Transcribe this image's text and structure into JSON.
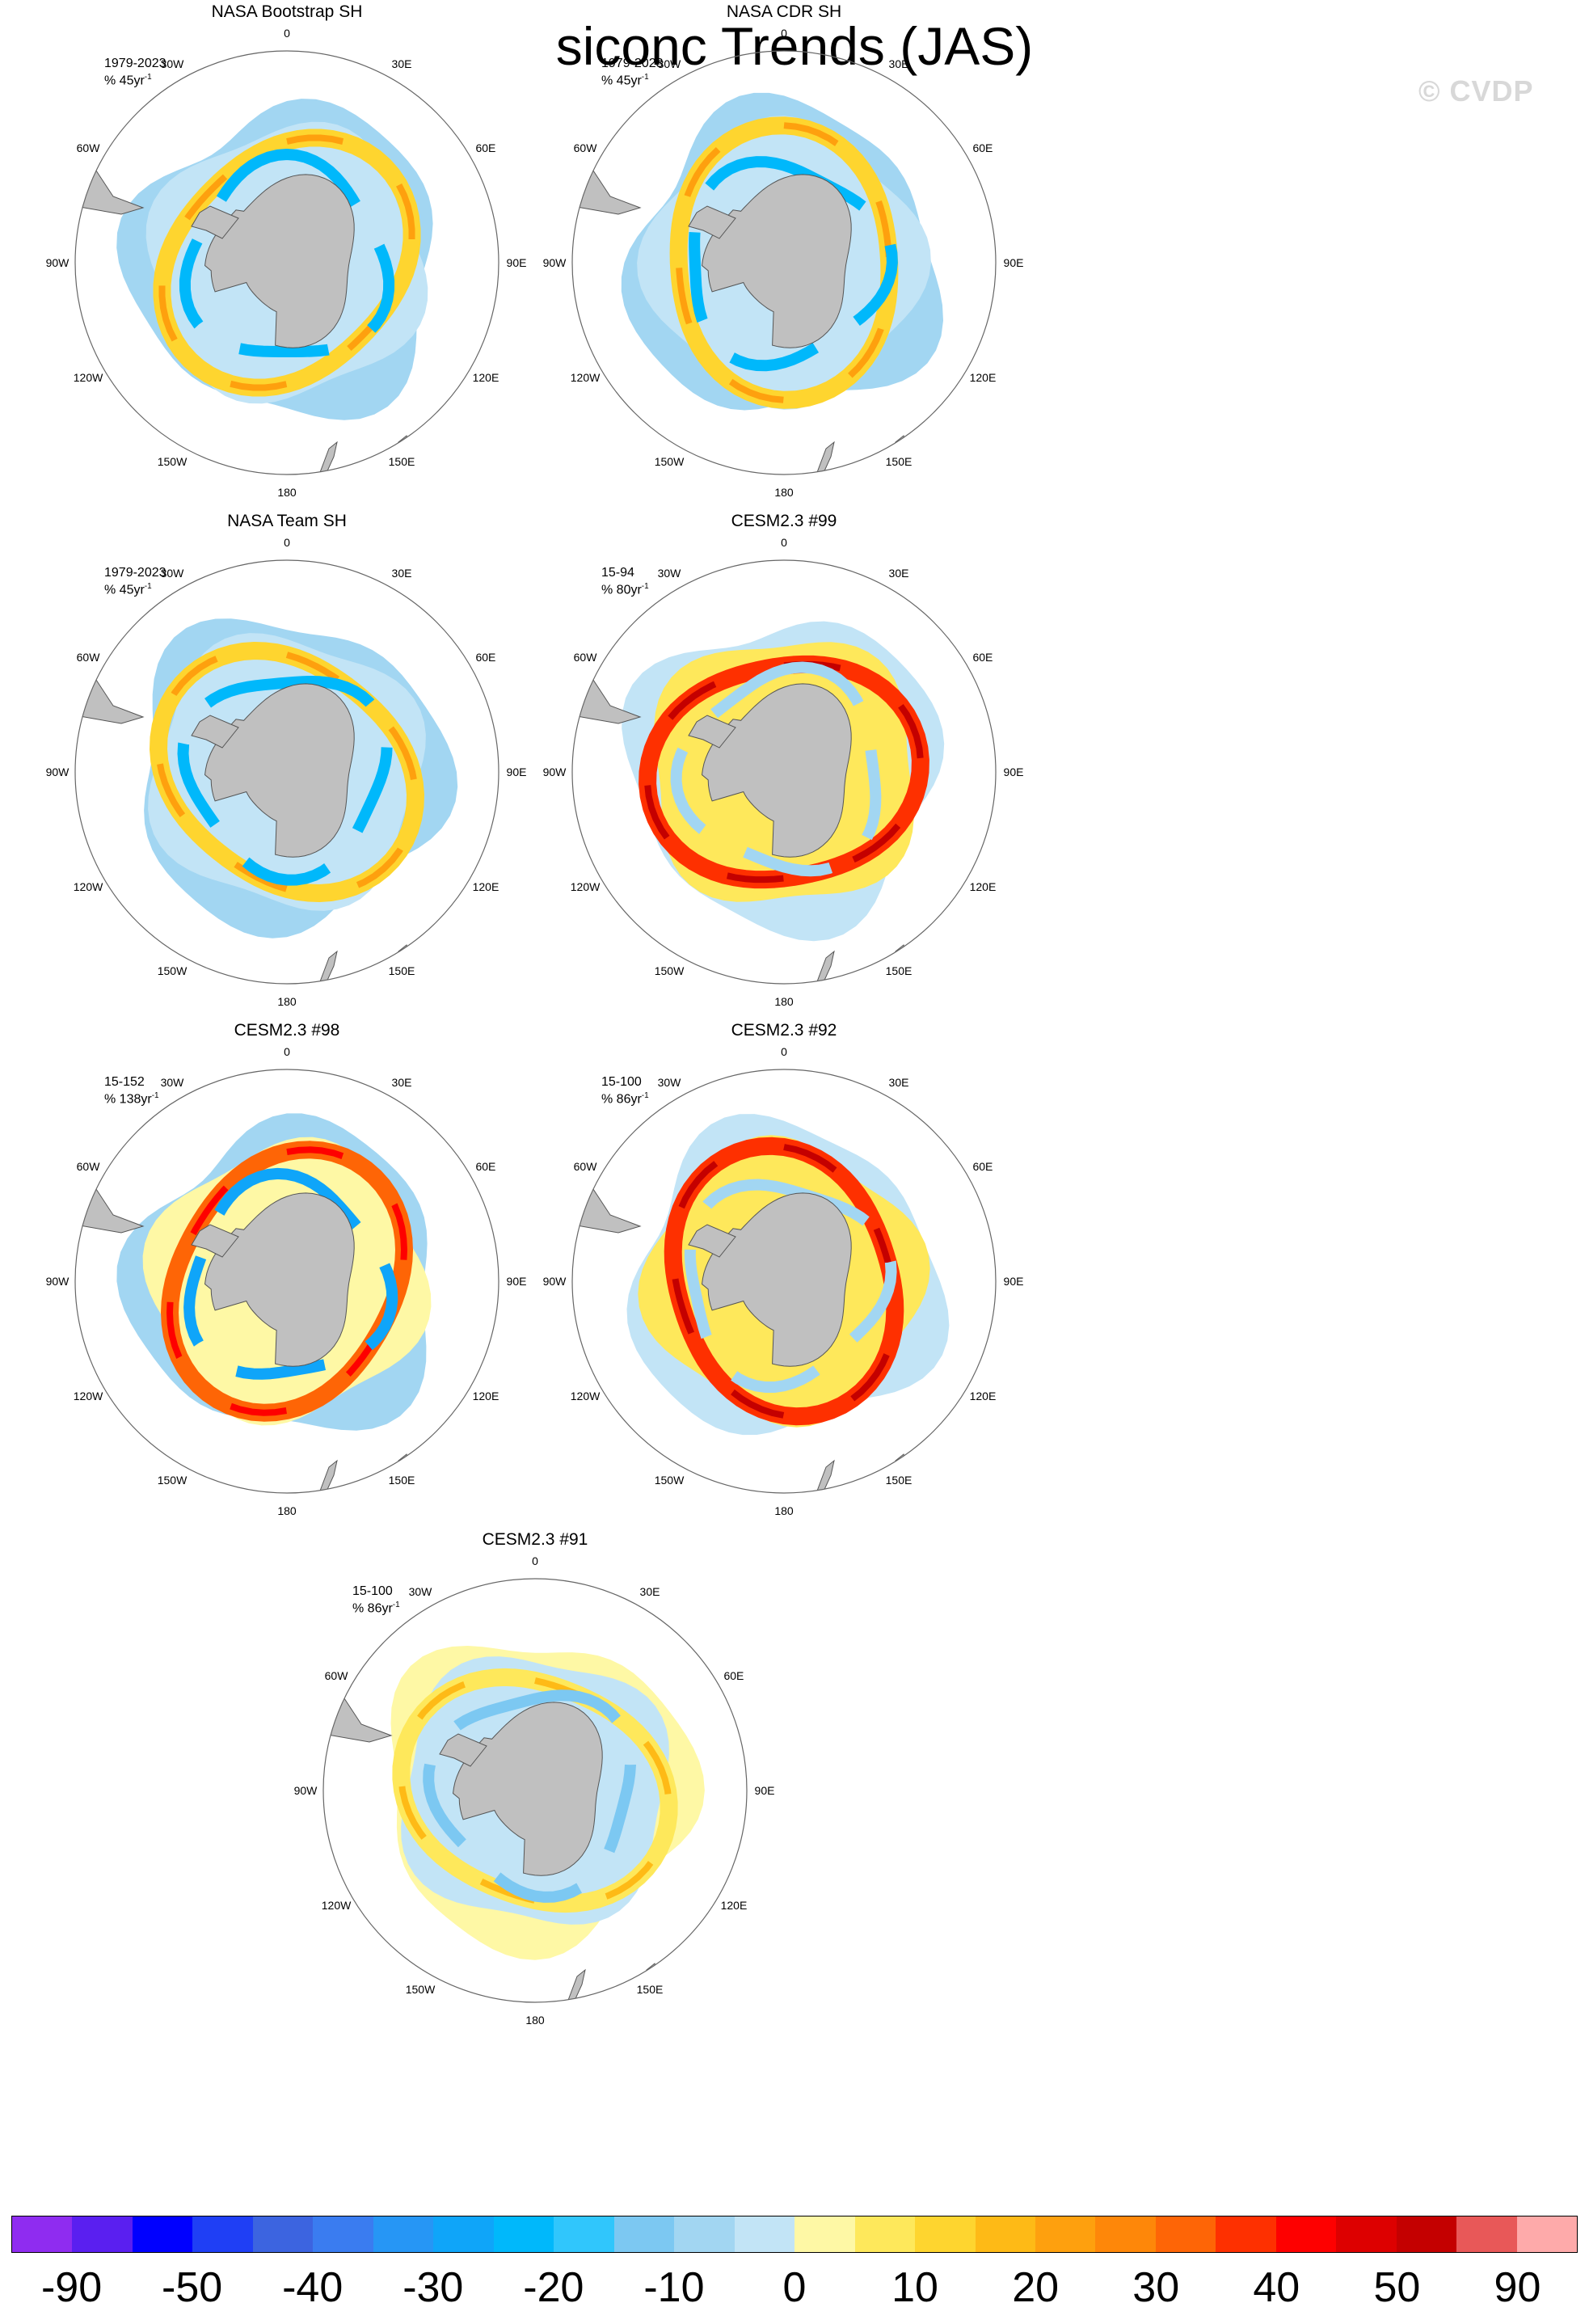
{
  "title": "siconc Trends (JAS)",
  "watermark": "© CVDP",
  "longitude_labels": [
    "0",
    "30E",
    "60E",
    "90E",
    "120E",
    "150E",
    "180",
    "150W",
    "120W",
    "90W",
    "60W",
    "30W"
  ],
  "panels": [
    {
      "title": "NASA Bootstrap SH",
      "period": "1979-2023",
      "units_prefix": "% 45yr",
      "units_exp": "-1",
      "style": "obs"
    },
    {
      "title": "NASA CDR SH",
      "period": "1979-2023",
      "units_prefix": "% 45yr",
      "units_exp": "-1",
      "style": "obs"
    },
    {
      "title": "NASA Team SH",
      "period": "1979-2023",
      "units_prefix": "% 45yr",
      "units_exp": "-1",
      "style": "obs"
    },
    {
      "title": "CESM2.3 #99",
      "period": "15-94",
      "units_prefix": "% 80yr",
      "units_exp": "-1",
      "style": "strong-positive"
    },
    {
      "title": "CESM2.3 #98",
      "period": "15-152",
      "units_prefix": "% 138yr",
      "units_exp": "-1",
      "style": "mixed"
    },
    {
      "title": "CESM2.3 #92",
      "period": "15-100",
      "units_prefix": "% 86yr",
      "units_exp": "-1",
      "style": "strong-positive"
    },
    {
      "title": "CESM2.3 #91",
      "period": "15-100",
      "units_prefix": "% 86yr",
      "units_exp": "-1",
      "style": "weak"
    }
  ],
  "colorbar": {
    "colors": [
      "#8f2cf0",
      "#5a1ff0",
      "#0000ff",
      "#1f3ff5",
      "#3c64e0",
      "#3a7cf0",
      "#2696f5",
      "#0fa5f9",
      "#00b8fb",
      "#30c6fc",
      "#7cc8f2",
      "#a2d6f2",
      "#c2e4f6",
      "#fef8a5",
      "#fee85b",
      "#fed52f",
      "#feba16",
      "#fea00e",
      "#fe8709",
      "#fe6506",
      "#fe3000",
      "#fe0000",
      "#dd0000",
      "#c40000",
      "#e85858",
      "#feaaaa"
    ],
    "labels": [
      "-90",
      "-50",
      "-40",
      "-30",
      "-20",
      "-10",
      "0",
      "10",
      "20",
      "30",
      "40",
      "50",
      "90"
    ]
  }
}
